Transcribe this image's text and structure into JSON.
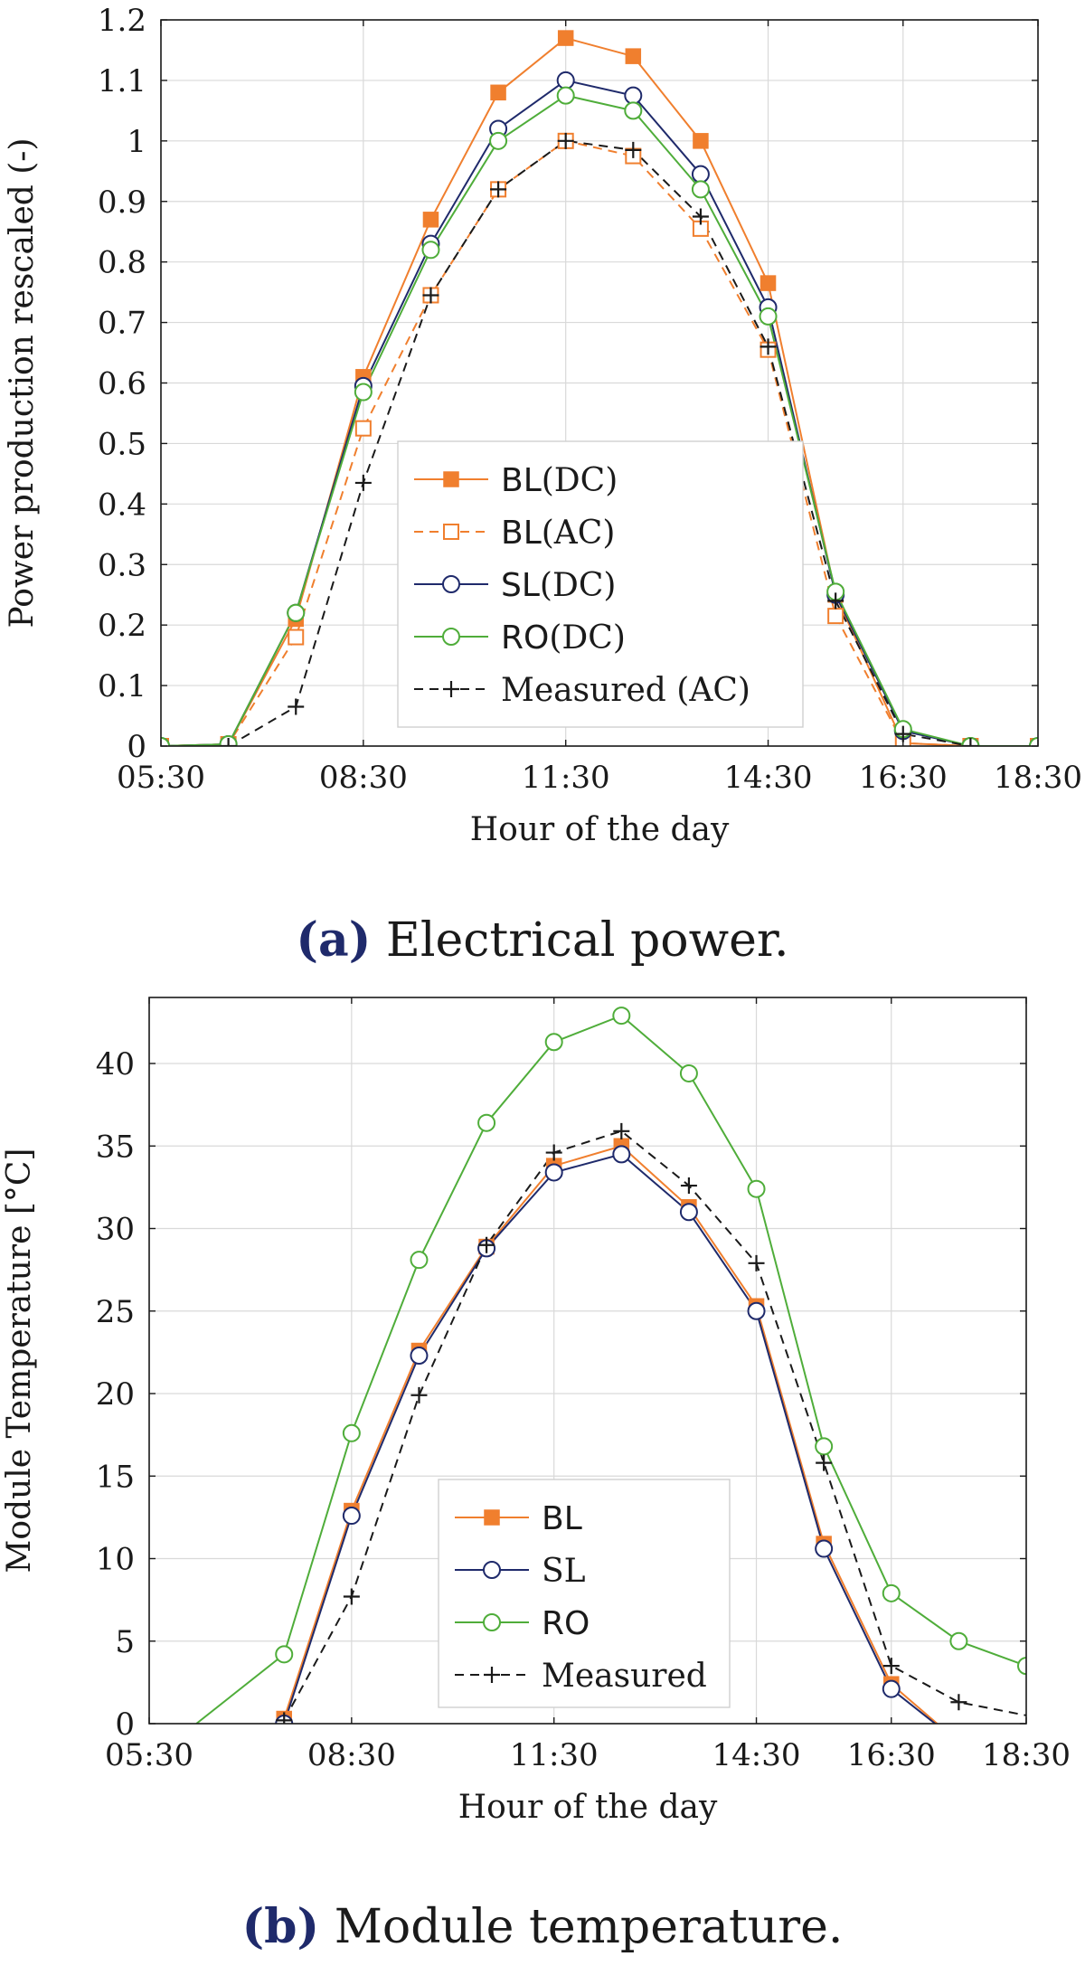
{
  "chart_data": [
    {
      "id": "a",
      "type": "line",
      "caption": {
        "letter": "(a)",
        "text": "Electrical power."
      },
      "xlabel": "Hour of the day",
      "ylabel": "Power production rescaled (-)",
      "xlim": [
        5.5,
        18.5
      ],
      "ylim": [
        0,
        1.2
      ],
      "xticks": [
        {
          "value": 5.5,
          "label": "05:30"
        },
        {
          "value": 8.5,
          "label": "08:30"
        },
        {
          "value": 11.5,
          "label": "11:30"
        },
        {
          "value": 14.5,
          "label": "14:30"
        },
        {
          "value": 16.5,
          "label": "16:30"
        },
        {
          "value": 18.5,
          "label": "18:30"
        }
      ],
      "yticks": [
        {
          "value": 0,
          "label": "0"
        },
        {
          "value": 0.1,
          "label": "0.1"
        },
        {
          "value": 0.2,
          "label": "0.2"
        },
        {
          "value": 0.3,
          "label": "0.3"
        },
        {
          "value": 0.4,
          "label": "0.4"
        },
        {
          "value": 0.5,
          "label": "0.5"
        },
        {
          "value": 0.6,
          "label": "0.6"
        },
        {
          "value": 0.7,
          "label": "0.7"
        },
        {
          "value": 0.8,
          "label": "0.8"
        },
        {
          "value": 0.9,
          "label": "0.9"
        },
        {
          "value": 1,
          "label": "1"
        },
        {
          "value": 1.1,
          "label": "1.1"
        },
        {
          "value": 1.2,
          "label": "1.2"
        }
      ],
      "legend_position": "center-left",
      "series": [
        {
          "key": "bl-dc",
          "name_prefix": "BL",
          "name_suffix": "(DC)",
          "color": "#f07f2e",
          "marker": "filled-square",
          "dashed": false,
          "x": [
            5.5,
            6.5,
            7.5,
            8.5,
            9.5,
            10.5,
            11.5,
            12.5,
            13.5,
            14.5,
            15.5,
            16.5,
            17.5,
            18.5
          ],
          "y": [
            0,
            0.003,
            0.21,
            0.61,
            0.87,
            1.08,
            1.17,
            1.14,
            1.0,
            0.765,
            0.25,
            0.005,
            0.0,
            0.0
          ]
        },
        {
          "key": "bl-ac",
          "name_prefix": "BL",
          "name_suffix": "(AC)",
          "color": "#f07f2e",
          "marker": "open-square",
          "dashed": true,
          "x": [
            5.5,
            6.5,
            7.5,
            8.5,
            9.5,
            10.5,
            11.5,
            12.5,
            13.5,
            14.5,
            15.5,
            16.5,
            17.5,
            18.5
          ],
          "y": [
            0,
            0.003,
            0.18,
            0.525,
            0.745,
            0.92,
            1.0,
            0.975,
            0.855,
            0.655,
            0.215,
            0.005,
            0.0,
            0.0
          ]
        },
        {
          "key": "sl-dc",
          "name_prefix": "SL",
          "name_suffix": "(DC)",
          "color": "#1f2a6b",
          "marker": "open-circle",
          "dashed": false,
          "x": [
            5.5,
            6.5,
            7.5,
            8.5,
            9.5,
            10.5,
            11.5,
            12.5,
            13.5,
            14.5,
            15.5,
            16.5,
            17.5,
            18.5
          ],
          "y": [
            0,
            0.003,
            0.22,
            0.595,
            0.83,
            1.02,
            1.1,
            1.075,
            0.945,
            0.725,
            0.25,
            0.025,
            0.0,
            0.0
          ]
        },
        {
          "key": "ro-dc",
          "name_prefix": "RO",
          "name_suffix": "(DC)",
          "color": "#4fad3a",
          "marker": "open-circle",
          "dashed": false,
          "x": [
            5.5,
            6.5,
            7.5,
            8.5,
            9.5,
            10.5,
            11.5,
            12.5,
            13.5,
            14.5,
            15.5,
            16.5,
            17.5,
            18.5
          ],
          "y": [
            0,
            0.003,
            0.22,
            0.585,
            0.82,
            1.0,
            1.075,
            1.05,
            0.92,
            0.71,
            0.255,
            0.028,
            0.0,
            0.0
          ]
        },
        {
          "key": "measured-ac",
          "name_prefix": "",
          "name_suffix": "Measured (AC)",
          "color": "#1a1a1a",
          "marker": "plus",
          "dashed": true,
          "x": [
            6.5,
            7.5,
            8.5,
            9.5,
            10.5,
            11.5,
            12.5,
            13.5,
            14.5,
            15.5,
            16.5,
            17.5
          ],
          "y": [
            0.0,
            0.065,
            0.435,
            0.745,
            0.92,
            1.0,
            0.985,
            0.875,
            0.66,
            0.24,
            0.02,
            0.0
          ]
        }
      ]
    },
    {
      "id": "b",
      "type": "line",
      "caption": {
        "letter": "(b)",
        "text": "Module temperature."
      },
      "xlabel": "Hour of the day",
      "ylabel": "Module Temperature [°C]",
      "xlim": [
        5.5,
        18.5
      ],
      "ylim": [
        0,
        44
      ],
      "xticks": [
        {
          "value": 5.5,
          "label": "05:30"
        },
        {
          "value": 8.5,
          "label": "08:30"
        },
        {
          "value": 11.5,
          "label": "11:30"
        },
        {
          "value": 14.5,
          "label": "14:30"
        },
        {
          "value": 16.5,
          "label": "16:30"
        },
        {
          "value": 18.5,
          "label": "18:30"
        }
      ],
      "yticks": [
        {
          "value": 0,
          "label": "0"
        },
        {
          "value": 5,
          "label": "5"
        },
        {
          "value": 10,
          "label": "10"
        },
        {
          "value": 15,
          "label": "15"
        },
        {
          "value": 20,
          "label": "20"
        },
        {
          "value": 25,
          "label": "25"
        },
        {
          "value": 30,
          "label": "30"
        },
        {
          "value": 35,
          "label": "35"
        },
        {
          "value": 40,
          "label": "40"
        }
      ],
      "legend_position": "bottom-center",
      "series": [
        {
          "key": "bl",
          "name_prefix": "BL",
          "name_suffix": "",
          "color": "#f07f2e",
          "marker": "filled-square",
          "dashed": false,
          "x": [
            7.5,
            8.5,
            9.5,
            10.5,
            11.5,
            12.5,
            13.5,
            14.5,
            15.5,
            16.5,
            17.18
          ],
          "y": [
            0.3,
            12.9,
            22.6,
            28.9,
            33.8,
            35.0,
            31.3,
            25.3,
            10.9,
            2.4,
            0.0
          ],
          "marker_count": 10
        },
        {
          "key": "sl",
          "name_prefix": "",
          "name_suffix": "SL",
          "color": "#1f2a6b",
          "marker": "open-circle",
          "dashed": false,
          "x": [
            7.5,
            8.5,
            9.5,
            10.5,
            11.5,
            12.5,
            13.5,
            14.5,
            15.5,
            16.5,
            17.15
          ],
          "y": [
            0.0,
            12.6,
            22.3,
            28.8,
            33.4,
            34.5,
            31.0,
            25.0,
            10.6,
            2.1,
            0.0
          ],
          "marker_count": 10
        },
        {
          "key": "ro",
          "name_prefix": "RO",
          "name_suffix": "",
          "color": "#4fad3a",
          "marker": "open-circle",
          "dashed": false,
          "x": [
            6.2,
            7.5,
            8.5,
            9.5,
            10.5,
            11.5,
            12.5,
            13.5,
            14.5,
            15.5,
            16.5,
            17.5,
            18.5
          ],
          "y": [
            0.0,
            4.2,
            17.6,
            28.1,
            36.4,
            41.3,
            42.9,
            39.4,
            32.4,
            16.8,
            7.9,
            5.0,
            3.5
          ],
          "marker_from": 1
        },
        {
          "key": "measured",
          "name_prefix": "",
          "name_suffix": "Measured",
          "color": "#1a1a1a",
          "marker": "plus",
          "dashed": true,
          "x": [
            7.5,
            8.5,
            9.5,
            10.5,
            11.5,
            12.5,
            13.5,
            14.5,
            15.5,
            16.5,
            17.5,
            18.5
          ],
          "y": [
            0.2,
            7.7,
            19.9,
            29.0,
            34.6,
            35.9,
            32.6,
            27.9,
            15.8,
            3.5,
            1.3,
            0.5
          ],
          "marker_count": 11
        }
      ]
    }
  ]
}
